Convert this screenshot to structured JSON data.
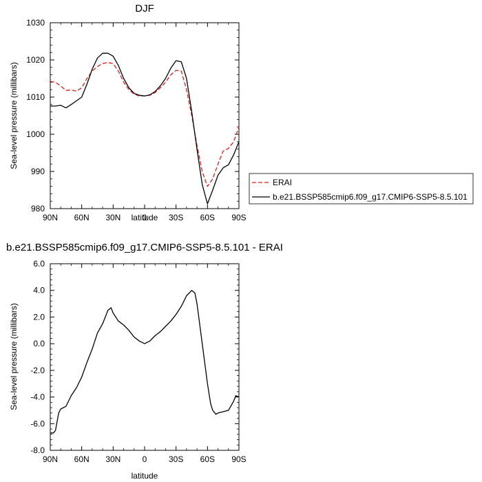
{
  "chart_data": [
    {
      "type": "line",
      "title": "DJF",
      "xlabel": "latitude",
      "ylabel": "Sea-level pressure (millibars)",
      "xlim": [
        90,
        -90
      ],
      "ylim": [
        980,
        1030
      ],
      "x_ticks": [
        90,
        60,
        30,
        0,
        -30,
        -60,
        -90
      ],
      "x_tick_labels": [
        "90N",
        "60N",
        "30N",
        "0",
        "30S",
        "60S",
        "90S"
      ],
      "y_ticks": [
        980,
        990,
        1000,
        1010,
        1020,
        1030
      ],
      "y_tick_labels": [
        "980",
        "990",
        "1000",
        "1010",
        "1020",
        "1030"
      ],
      "legend_position": "right",
      "series": [
        {
          "name": "ERAI",
          "color": "#e41a1c",
          "dash": "dashed",
          "x": [
            90,
            85,
            80,
            75,
            70,
            65,
            60,
            55,
            50,
            45,
            40,
            35,
            30,
            25,
            20,
            15,
            10,
            5,
            0,
            -5,
            -10,
            -15,
            -20,
            -25,
            -30,
            -35,
            -40,
            -45,
            -50,
            -55,
            -60,
            -65,
            -70,
            -75,
            -80,
            -85,
            -90
          ],
          "y": [
            1014.2,
            1014.0,
            1013.0,
            1011.8,
            1011.9,
            1011.6,
            1012.5,
            1015.0,
            1017.0,
            1018.2,
            1019.0,
            1019.3,
            1019.0,
            1017.0,
            1014.0,
            1012.0,
            1010.8,
            1010.3,
            1010.3,
            1010.5,
            1011.2,
            1012.5,
            1014.0,
            1016.0,
            1017.2,
            1017.0,
            1012.0,
            1005.0,
            997.0,
            990.0,
            986.0,
            988.0,
            992.0,
            995.5,
            996.2,
            998.0,
            1002.0
          ]
        },
        {
          "name": "b.e21.BSSP585cmip6.f09_g17.CMIP6-SSP5-8.5.101",
          "color": "#000000",
          "dash": "solid",
          "x": [
            90,
            85,
            80,
            75,
            70,
            65,
            60,
            55,
            50,
            45,
            40,
            35,
            30,
            25,
            20,
            15,
            10,
            5,
            0,
            -5,
            -10,
            -15,
            -20,
            -25,
            -30,
            -35,
            -40,
            -45,
            -50,
            -55,
            -60,
            -65,
            -70,
            -75,
            -80,
            -85,
            -90
          ],
          "y": [
            1007.6,
            1007.6,
            1007.8,
            1007.1,
            1008.0,
            1009.0,
            1010.0,
            1013.5,
            1017.5,
            1020.5,
            1021.8,
            1021.8,
            1021.0,
            1018.5,
            1015.0,
            1012.5,
            1011.0,
            1010.5,
            1010.3,
            1010.6,
            1011.5,
            1013.0,
            1015.0,
            1017.8,
            1019.8,
            1019.5,
            1015.0,
            1006.0,
            996.0,
            986.5,
            981.3,
            985.0,
            989.0,
            991.0,
            991.8,
            994.5,
            998.0
          ]
        }
      ]
    },
    {
      "type": "line",
      "title": "b.e21.BSSP585cmip6.f09_g17.CMIP6-SSP5-8.5.101 - ERAI",
      "xlabel": "latitude",
      "ylabel": "Sea-level pressure (millibars)",
      "xlim": [
        90,
        -90
      ],
      "ylim": [
        -8.0,
        6.0
      ],
      "x_ticks": [
        90,
        60,
        30,
        0,
        -30,
        -60,
        -90
      ],
      "x_tick_labels": [
        "90N",
        "60N",
        "30N",
        "0",
        "30S",
        "60S",
        "90S"
      ],
      "y_ticks": [
        -8,
        -6,
        -4,
        -2,
        0,
        2,
        4,
        6
      ],
      "y_tick_labels": [
        "-8.0",
        "-6.0",
        "-4.0",
        "-2.0",
        "0.0",
        "2.0",
        "4.0",
        "6.0"
      ],
      "series": [
        {
          "color": "#000000",
          "dash": "solid",
          "x": [
            90,
            87,
            85,
            82,
            80,
            75,
            70,
            65,
            60,
            55,
            50,
            45,
            40,
            35,
            32,
            30,
            25,
            20,
            15,
            10,
            5,
            0,
            -5,
            -10,
            -15,
            -20,
            -25,
            -30,
            -35,
            -40,
            -45,
            -48,
            -50,
            -55,
            -60,
            -63,
            -65,
            -68,
            -70,
            -75,
            -80,
            -85,
            -87,
            -90
          ],
          "y": [
            -6.7,
            -6.7,
            -6.5,
            -5.2,
            -4.9,
            -4.7,
            -3.9,
            -3.3,
            -2.5,
            -1.4,
            -0.4,
            0.8,
            1.5,
            2.5,
            2.7,
            2.3,
            1.7,
            1.4,
            1.0,
            0.5,
            0.2,
            0.0,
            0.2,
            0.6,
            0.9,
            1.3,
            1.7,
            2.2,
            2.8,
            3.6,
            4.0,
            3.8,
            3.0,
            0.0,
            -3.0,
            -4.5,
            -5.0,
            -5.3,
            -5.2,
            -5.1,
            -5.0,
            -4.3,
            -3.9,
            -4.0
          ]
        }
      ]
    }
  ]
}
